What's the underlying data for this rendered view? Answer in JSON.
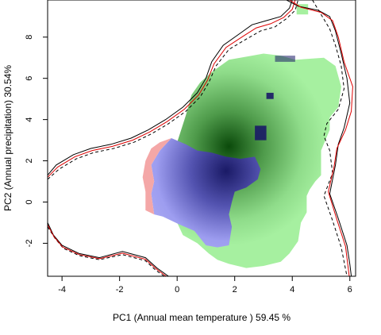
{
  "chart_data": {
    "type": "heatmap",
    "title": "",
    "xlabel": "PC1 (Annual mean temperature ) 59.45 %",
    "ylabel": "PC2 (Annual precipitation) 30.54%",
    "xlim": [
      -4.5,
      6.2
    ],
    "ylim": [
      -3.6,
      9.8
    ],
    "x_ticks": [
      -4,
      -2,
      0,
      2,
      4,
      6
    ],
    "y_ticks": [
      -2,
      0,
      2,
      4,
      6,
      8
    ],
    "x_tick_labels": [
      "-4",
      "-2",
      "0",
      "2",
      "4",
      "6"
    ],
    "y_tick_labels": [
      "-2",
      "0",
      "2",
      "4",
      "6",
      "8"
    ],
    "grid": false,
    "colors": {
      "green": "#a6f0a0",
      "green_dense": "#0b4a0b",
      "blue": "#a8a8f2",
      "blue_dense": "#1a1a66",
      "red": "#f4a7a7",
      "outline_black": "#000000",
      "outline_red": "#dd0000"
    },
    "series": [
      {
        "name": "green",
        "role": "density region",
        "color": "#a6f0a0",
        "outline": [
          [
            1.8,
            6.9
          ],
          [
            2.6,
            7.1
          ],
          [
            3.0,
            7.2
          ],
          [
            3.6,
            7.1
          ],
          [
            4.1,
            6.9
          ],
          [
            5.1,
            7.0
          ],
          [
            5.5,
            6.6
          ],
          [
            5.7,
            5.6
          ],
          [
            5.6,
            4.6
          ],
          [
            5.3,
            4.1
          ],
          [
            5.3,
            3.5
          ],
          [
            5.0,
            2.5
          ],
          [
            5.0,
            1.3
          ],
          [
            4.8,
            1.0
          ],
          [
            4.6,
            0.6
          ],
          [
            4.5,
            0.3
          ],
          [
            4.5,
            -0.5
          ],
          [
            4.3,
            -1.0
          ],
          [
            4.2,
            -1.9
          ],
          [
            3.9,
            -2.5
          ],
          [
            3.6,
            -2.9
          ],
          [
            3.0,
            -3.1
          ],
          [
            2.4,
            -3.2
          ],
          [
            1.8,
            -3.0
          ],
          [
            1.4,
            -2.8
          ],
          [
            1.1,
            -2.5
          ],
          [
            0.7,
            -2.0
          ],
          [
            0.2,
            -1.6
          ],
          [
            0.0,
            -1.0
          ],
          [
            0.0,
            2.9
          ],
          [
            0.3,
            4.2
          ],
          [
            0.5,
            5.2
          ],
          [
            0.8,
            5.8
          ],
          [
            1.2,
            6.3
          ]
        ],
        "peak": [
          1.8,
          2.7
        ]
      },
      {
        "name": "blue",
        "role": "density region",
        "color": "#a8a8f2",
        "outline": [
          [
            -0.2,
            3.1
          ],
          [
            0.3,
            2.8
          ],
          [
            0.7,
            2.5
          ],
          [
            1.2,
            2.4
          ],
          [
            1.7,
            2.2
          ],
          [
            2.2,
            2.1
          ],
          [
            2.7,
            2.2
          ],
          [
            2.9,
            1.6
          ],
          [
            2.8,
            1.1
          ],
          [
            2.4,
            0.7
          ],
          [
            2.0,
            0.5
          ],
          [
            1.9,
            0.0
          ],
          [
            1.8,
            -0.6
          ],
          [
            1.9,
            -1.2
          ],
          [
            1.8,
            -2.1
          ],
          [
            1.4,
            -2.2
          ],
          [
            1.0,
            -2.1
          ],
          [
            0.6,
            -1.4
          ],
          [
            0.1,
            -1.1
          ],
          [
            -0.5,
            -0.7
          ],
          [
            -0.8,
            -0.6
          ],
          [
            -0.9,
            0.4
          ],
          [
            -0.8,
            1.0
          ],
          [
            -0.9,
            1.8
          ],
          [
            -0.6,
            2.5
          ]
        ],
        "peak": [
          1.7,
          1.5
        ],
        "patches": [
          [
            [
              3.4,
              7.1
            ],
            [
              4.1,
              7.1
            ],
            [
              4.1,
              6.8
            ],
            [
              3.4,
              6.8
            ]
          ],
          [
            [
              3.1,
              5.3
            ],
            [
              3.35,
              5.3
            ],
            [
              3.35,
              5.0
            ],
            [
              3.1,
              5.0
            ]
          ],
          [
            [
              2.7,
              3.7
            ],
            [
              3.1,
              3.7
            ],
            [
              3.1,
              3.0
            ],
            [
              2.7,
              3.0
            ]
          ]
        ]
      },
      {
        "name": "red",
        "role": "density region",
        "color": "#f4a7a7",
        "outline": [
          [
            -0.2,
            3.1
          ],
          [
            -0.6,
            2.9
          ],
          [
            -0.9,
            2.6
          ],
          [
            -1.1,
            2.0
          ],
          [
            -1.2,
            1.2
          ],
          [
            -1.1,
            0.5
          ],
          [
            -1.1,
            -0.4
          ],
          [
            -0.8,
            -0.6
          ],
          [
            -0.9,
            0.4
          ],
          [
            -0.8,
            1.0
          ],
          [
            -0.9,
            1.8
          ],
          [
            -0.6,
            2.5
          ]
        ]
      },
      {
        "name": "green-patch",
        "role": "density region",
        "color": "#a6f0a0",
        "outline": [
          [
            4.15,
            9.6
          ],
          [
            4.55,
            9.6
          ],
          [
            4.55,
            9.1
          ],
          [
            4.15,
            9.1
          ]
        ]
      },
      {
        "name": "outer-solid-black",
        "role": "contour",
        "color": "#000000",
        "dash": "solid",
        "points": [
          [
            -4.5,
            1.3
          ],
          [
            -4.2,
            1.8
          ],
          [
            -3.6,
            2.3
          ],
          [
            -3.0,
            2.6
          ],
          [
            -2.3,
            2.8
          ],
          [
            -1.6,
            3.1
          ],
          [
            -1.0,
            3.5
          ],
          [
            -0.4,
            4.0
          ],
          [
            0.2,
            4.6
          ],
          [
            0.7,
            5.3
          ],
          [
            1.0,
            6.0
          ],
          [
            1.2,
            6.8
          ],
          [
            1.6,
            7.6
          ],
          [
            2.2,
            8.2
          ],
          [
            2.6,
            8.6
          ],
          [
            3.1,
            8.8
          ],
          [
            3.6,
            9.0
          ],
          [
            3.9,
            9.4
          ],
          [
            4.0,
            9.8
          ]
        ]
      },
      {
        "name": "outer-dashed-black",
        "role": "contour",
        "color": "#000000",
        "dash": "dashed",
        "points": [
          [
            -4.5,
            1.1
          ],
          [
            -4.1,
            1.6
          ],
          [
            -3.5,
            2.1
          ],
          [
            -2.9,
            2.4
          ],
          [
            -2.2,
            2.6
          ],
          [
            -1.5,
            2.9
          ],
          [
            -0.9,
            3.3
          ],
          [
            -0.3,
            3.8
          ],
          [
            0.3,
            4.4
          ],
          [
            0.8,
            5.1
          ],
          [
            1.1,
            5.8
          ],
          [
            1.35,
            6.6
          ],
          [
            1.8,
            7.4
          ],
          [
            2.4,
            7.9
          ],
          [
            2.9,
            8.3
          ],
          [
            3.4,
            8.5
          ],
          [
            3.8,
            8.9
          ],
          [
            4.1,
            9.3
          ],
          [
            4.2,
            9.8
          ]
        ]
      },
      {
        "name": "outer-red",
        "role": "contour",
        "color": "#dd0000",
        "dash": "solid",
        "points": [
          [
            -4.5,
            1.2
          ],
          [
            -4.15,
            1.7
          ],
          [
            -3.55,
            2.2
          ],
          [
            -2.95,
            2.5
          ],
          [
            -2.25,
            2.7
          ],
          [
            -1.55,
            3.0
          ],
          [
            -0.95,
            3.4
          ],
          [
            -0.35,
            3.9
          ],
          [
            0.25,
            4.5
          ],
          [
            0.75,
            5.2
          ],
          [
            1.05,
            5.9
          ],
          [
            1.28,
            6.7
          ],
          [
            1.7,
            7.5
          ],
          [
            2.3,
            8.05
          ],
          [
            2.75,
            8.45
          ],
          [
            3.25,
            8.65
          ],
          [
            3.7,
            8.95
          ],
          [
            4.0,
            9.35
          ],
          [
            4.1,
            9.8
          ]
        ]
      },
      {
        "name": "right-solid-black",
        "role": "contour",
        "color": "#000000",
        "dash": "solid",
        "points": [
          [
            3.8,
            9.8
          ],
          [
            4.2,
            9.5
          ],
          [
            4.9,
            9.3
          ],
          [
            5.3,
            9.0
          ],
          [
            5.5,
            8.3
          ],
          [
            5.7,
            7.2
          ],
          [
            5.9,
            6.0
          ],
          [
            6.0,
            4.8
          ],
          [
            5.8,
            3.6
          ],
          [
            5.6,
            2.8
          ],
          [
            5.5,
            1.8
          ],
          [
            5.3,
            0.4
          ],
          [
            5.6,
            -0.8
          ],
          [
            5.9,
            -2.1
          ],
          [
            6.0,
            -3.0
          ],
          [
            6.05,
            -3.6
          ]
        ]
      },
      {
        "name": "right-dashed-black",
        "role": "contour",
        "color": "#000000",
        "dash": "dashed",
        "points": [
          [
            4.7,
            9.8
          ],
          [
            5.0,
            9.1
          ],
          [
            5.3,
            8.4
          ],
          [
            5.5,
            7.6
          ],
          [
            5.7,
            6.6
          ],
          [
            5.8,
            5.5
          ],
          [
            5.6,
            4.5
          ],
          [
            5.2,
            3.8
          ],
          [
            5.1,
            3.2
          ],
          [
            5.3,
            2.5
          ],
          [
            5.4,
            1.4
          ],
          [
            5.1,
            0.3
          ],
          [
            5.4,
            -0.9
          ],
          [
            5.7,
            -2.2
          ],
          [
            5.9,
            -3.6
          ]
        ]
      },
      {
        "name": "right-red",
        "role": "contour",
        "color": "#dd0000",
        "dash": "solid",
        "points": [
          [
            3.9,
            9.8
          ],
          [
            4.3,
            9.45
          ],
          [
            5.0,
            9.2
          ],
          [
            5.4,
            8.8
          ],
          [
            5.6,
            8.0
          ],
          [
            5.8,
            6.8
          ],
          [
            6.1,
            5.6
          ],
          [
            6.05,
            4.4
          ],
          [
            5.85,
            3.5
          ],
          [
            5.55,
            2.6
          ],
          [
            5.45,
            1.7
          ],
          [
            5.25,
            0.5
          ],
          [
            5.55,
            -0.85
          ],
          [
            5.85,
            -2.15
          ],
          [
            5.98,
            -3.6
          ]
        ]
      },
      {
        "name": "bottom-solid-black",
        "role": "contour",
        "color": "#000000",
        "dash": "solid",
        "points": [
          [
            -4.5,
            -1.0
          ],
          [
            -4.3,
            -1.6
          ],
          [
            -4.0,
            -2.1
          ],
          [
            -3.4,
            -2.5
          ],
          [
            -2.7,
            -2.7
          ],
          [
            -1.9,
            -2.4
          ],
          [
            -1.1,
            -2.7
          ],
          [
            -0.7,
            -3.2
          ],
          [
            -0.3,
            -3.6
          ]
        ]
      },
      {
        "name": "bottom-dashed-black",
        "role": "contour",
        "color": "#000000",
        "dash": "dashed",
        "points": [
          [
            -4.5,
            -1.2
          ],
          [
            -4.25,
            -1.75
          ],
          [
            -3.95,
            -2.25
          ],
          [
            -3.4,
            -2.6
          ],
          [
            -2.7,
            -2.8
          ],
          [
            -1.9,
            -2.55
          ],
          [
            -1.1,
            -2.85
          ],
          [
            -0.75,
            -3.3
          ],
          [
            -0.45,
            -3.6
          ]
        ]
      },
      {
        "name": "bottom-red",
        "role": "contour",
        "color": "#dd0000",
        "dash": "solid",
        "points": [
          [
            -4.5,
            -1.1
          ],
          [
            -4.28,
            -1.68
          ],
          [
            -3.98,
            -2.18
          ],
          [
            -3.4,
            -2.55
          ],
          [
            -2.7,
            -2.75
          ],
          [
            -1.9,
            -2.48
          ],
          [
            -1.1,
            -2.78
          ],
          [
            -0.72,
            -3.25
          ],
          [
            -0.38,
            -3.6
          ]
        ]
      }
    ]
  }
}
